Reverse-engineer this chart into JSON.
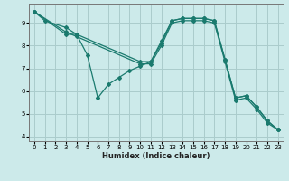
{
  "xlabel": "Humidex (Indice chaleur)",
  "ylabel": "",
  "bg_color": "#cceaea",
  "grid_color": "#aacccc",
  "line_color": "#1a7a6e",
  "xlim": [
    -0.5,
    23.5
  ],
  "ylim": [
    3.8,
    9.85
  ],
  "xticks": [
    0,
    1,
    2,
    3,
    4,
    5,
    6,
    7,
    8,
    9,
    10,
    11,
    12,
    13,
    14,
    15,
    16,
    17,
    18,
    19,
    20,
    21,
    22,
    23
  ],
  "yticks": [
    4,
    5,
    6,
    7,
    8,
    9
  ],
  "series": [
    {
      "x": [
        0,
        1,
        3,
        4,
        5,
        6,
        7,
        8,
        9,
        10,
        11,
        12,
        13,
        14,
        15,
        16,
        17,
        18,
        19,
        20,
        21,
        22,
        23
      ],
      "y": [
        9.5,
        9.1,
        8.8,
        8.5,
        7.6,
        5.7,
        6.3,
        6.6,
        6.9,
        7.1,
        7.3,
        8.2,
        9.1,
        9.2,
        9.2,
        9.2,
        9.1,
        7.4,
        5.7,
        5.8,
        5.3,
        4.7,
        4.3
      ]
    },
    {
      "x": [
        0,
        3,
        4,
        10,
        11,
        12,
        13,
        14,
        15,
        16,
        17,
        18,
        19,
        20,
        21,
        22,
        23
      ],
      "y": [
        9.5,
        8.5,
        8.5,
        7.3,
        7.3,
        8.1,
        9.1,
        9.2,
        9.2,
        9.2,
        9.1,
        7.4,
        5.7,
        5.8,
        5.3,
        4.7,
        4.3
      ]
    },
    {
      "x": [
        0,
        3,
        4,
        10,
        11,
        12,
        13,
        14,
        15,
        16,
        17,
        18,
        19,
        20,
        21,
        22,
        23
      ],
      "y": [
        9.5,
        8.6,
        8.4,
        7.2,
        7.2,
        8.0,
        9.0,
        9.1,
        9.1,
        9.1,
        9.0,
        7.3,
        5.6,
        5.7,
        5.2,
        4.6,
        4.3
      ]
    }
  ],
  "marker": "D",
  "markersize": 2.0,
  "linewidth": 0.9,
  "xlabel_fontsize": 6.0,
  "tick_fontsize": 5.0
}
